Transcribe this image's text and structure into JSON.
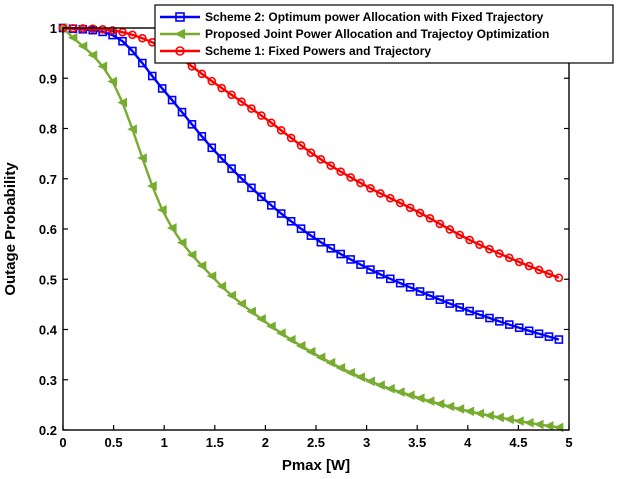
{
  "chart_data": {
    "type": "line",
    "xlabel": "Pmax [W]",
    "ylabel": "Outage Probability",
    "xlim": [
      0,
      5
    ],
    "ylim": [
      0.2,
      1.0
    ],
    "x_ticks": [
      "0",
      "0.5",
      "1",
      "1.5",
      "2",
      "2.5",
      "3",
      "3.5",
      "4",
      "4.5",
      "5"
    ],
    "y_ticks": [
      "0.2",
      "0.3",
      "0.4",
      "0.5",
      "0.6",
      "0.7",
      "0.8",
      "0.9",
      "1"
    ],
    "grid": false,
    "legend_position": "top-right",
    "series": [
      {
        "name": "Scheme 2: Optimum power Allocation with Fixed Trajectory",
        "color": "#0000ff",
        "marker": "square",
        "x": [
          0,
          0.5,
          1,
          1.5,
          2,
          2.5,
          3,
          3.5,
          4,
          4.5,
          4.9
        ],
        "values": [
          1.0,
          0.985,
          0.875,
          0.755,
          0.657,
          0.58,
          0.523,
          0.478,
          0.438,
          0.404,
          0.38
        ]
      },
      {
        "name": "Proposed Joint Power Allocation and Trajectoy Optimization",
        "color": "#77ac30",
        "marker": "triangle-left",
        "x": [
          0,
          0.5,
          1,
          1.5,
          2,
          2.5,
          3,
          3.5,
          4,
          4.5,
          4.9
        ],
        "values": [
          1.0,
          0.89,
          0.63,
          0.5,
          0.415,
          0.35,
          0.3,
          0.265,
          0.238,
          0.218,
          0.205
        ]
      },
      {
        "name": "Scheme 1: Fixed Powers and Trajectory",
        "color": "#ff0000",
        "marker": "circle",
        "x": [
          0,
          0.5,
          1,
          1.5,
          2,
          2.5,
          3,
          3.5,
          4,
          4.5,
          4.9
        ],
        "values": [
          1.0,
          0.995,
          0.96,
          0.89,
          0.82,
          0.745,
          0.685,
          0.635,
          0.58,
          0.535,
          0.503
        ]
      }
    ]
  }
}
